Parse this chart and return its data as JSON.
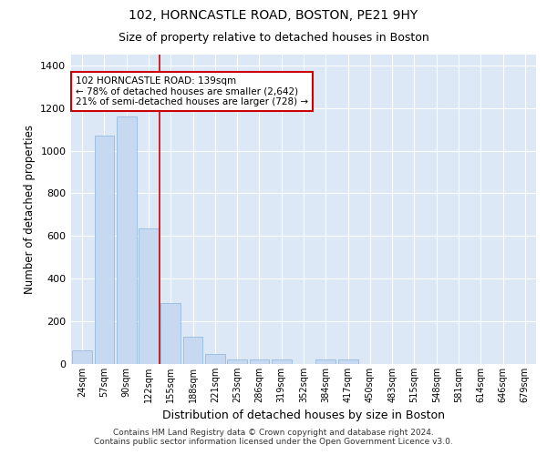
{
  "title1": "102, HORNCASTLE ROAD, BOSTON, PE21 9HY",
  "title2": "Size of property relative to detached houses in Boston",
  "xlabel": "Distribution of detached houses by size in Boston",
  "ylabel": "Number of detached properties",
  "categories": [
    "24sqm",
    "57sqm",
    "90sqm",
    "122sqm",
    "155sqm",
    "188sqm",
    "221sqm",
    "253sqm",
    "286sqm",
    "319sqm",
    "352sqm",
    "384sqm",
    "417sqm",
    "450sqm",
    "483sqm",
    "515sqm",
    "548sqm",
    "581sqm",
    "614sqm",
    "646sqm",
    "679sqm"
  ],
  "values": [
    65,
    1070,
    1160,
    635,
    285,
    130,
    48,
    20,
    20,
    20,
    0,
    20,
    20,
    0,
    0,
    0,
    0,
    0,
    0,
    0,
    0
  ],
  "bar_color": "#c6d9f0",
  "bar_edge_color": "#8ab4d8",
  "vline_color": "#cc0000",
  "annotation_text": "102 HORNCASTLE ROAD: 139sqm\n← 78% of detached houses are smaller (2,642)\n21% of semi-detached houses are larger (728) →",
  "annotation_box_color": "white",
  "annotation_box_edge_color": "#cc0000",
  "ylim": [
    0,
    1450
  ],
  "yticks": [
    0,
    200,
    400,
    600,
    800,
    1000,
    1200,
    1400
  ],
  "background_color": "#dce8f5",
  "grid_color": "white",
  "footer": "Contains HM Land Registry data © Crown copyright and database right 2024.\nContains public sector information licensed under the Open Government Licence v3.0.",
  "figsize": [
    6.0,
    5.0
  ],
  "dpi": 100
}
